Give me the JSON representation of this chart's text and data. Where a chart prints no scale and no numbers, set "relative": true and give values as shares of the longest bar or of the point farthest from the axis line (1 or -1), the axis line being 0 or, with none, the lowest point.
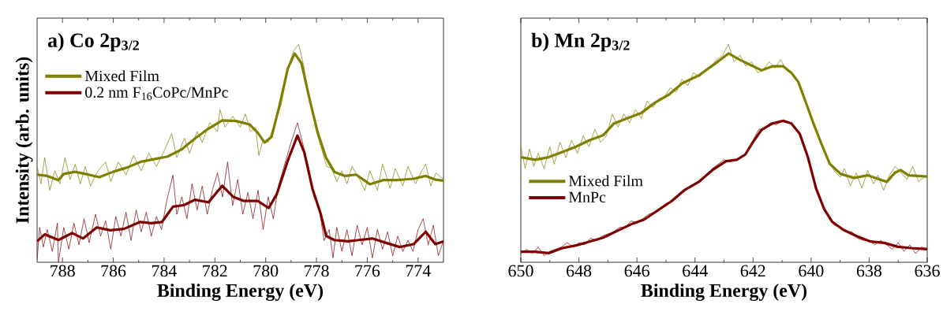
{
  "chart_data": [
    {
      "type": "line",
      "title": "a) Co 2p$_{3/2}$",
      "xlabel": "Binding Energy (eV)",
      "ylabel": "Intensity (arb. units)",
      "relative": true,
      "xlim": [
        789,
        773
      ],
      "xticks": [
        788,
        786,
        784,
        782,
        780,
        778,
        776,
        774
      ],
      "legend": "top left",
      "series": [
        {
          "color": "#808000",
          "x": [
            789.0,
            788.85,
            788.7,
            788.5,
            788.3,
            788.1,
            787.9,
            787.7,
            787.5,
            787.3,
            787.1,
            786.9,
            786.6,
            786.3,
            786.1,
            785.8,
            785.5,
            785.2,
            784.9,
            784.6,
            784.3,
            784.0,
            783.7,
            783.5,
            783.2,
            783.0,
            782.7,
            782.5,
            782.2,
            781.9,
            781.8,
            781.6,
            781.3,
            781.0,
            780.8,
            780.6,
            780.4,
            780.27,
            780.1,
            779.9,
            779.7,
            779.4,
            779.1,
            778.9,
            778.7,
            778.5,
            778.3,
            778.0,
            777.8,
            777.6,
            777.4,
            777.2,
            777.0,
            776.8,
            776.6,
            776.3,
            776.1,
            775.9,
            775.6,
            775.4,
            775.1,
            774.9,
            774.6,
            774.4,
            774.1,
            773.9,
            773.7,
            773.5,
            773.3,
            773.0
          ],
          "values": [
            0.44,
            0.36,
            0.48,
            0.33,
            0.42,
            0.36,
            0.48,
            0.38,
            0.45,
            0.36,
            0.44,
            0.35,
            0.42,
            0.46,
            0.37,
            0.46,
            0.4,
            0.49,
            0.42,
            0.5,
            0.44,
            0.51,
            0.59,
            0.48,
            0.57,
            0.5,
            0.6,
            0.55,
            0.64,
            0.6,
            0.7,
            0.62,
            0.67,
            0.62,
            0.68,
            0.6,
            0.62,
            0.49,
            0.56,
            0.55,
            0.62,
            0.72,
            0.9,
            0.97,
            1.0,
            0.9,
            0.76,
            0.6,
            0.52,
            0.44,
            0.43,
            0.37,
            0.42,
            0.36,
            0.44,
            0.38,
            0.33,
            0.42,
            0.33,
            0.45,
            0.34,
            0.43,
            0.35,
            0.44,
            0.36,
            0.41,
            0.45,
            0.35,
            0.41,
            0.38
          ]
        },
        {
          "color": "#800000",
          "x": [
            789.0,
            788.9,
            788.75,
            788.6,
            788.4,
            788.2,
            788.16,
            787.95,
            787.75,
            787.55,
            787.35,
            787.15,
            786.95,
            786.7,
            786.5,
            786.3,
            786.1,
            785.9,
            785.7,
            785.5,
            785.3,
            785.1,
            784.9,
            784.7,
            784.5,
            784.3,
            784.1,
            783.9,
            783.65,
            783.5,
            783.3,
            783.1,
            782.9,
            782.7,
            782.5,
            782.3,
            782.1,
            781.9,
            781.7,
            781.5,
            781.3,
            781.1,
            780.9,
            780.7,
            780.5,
            780.3,
            780.1,
            779.9,
            779.7,
            779.5,
            779.2,
            779.0,
            778.75,
            778.55,
            778.3,
            778.1,
            777.9,
            777.7,
            777.5,
            777.35,
            777.2,
            777.0,
            776.8,
            776.6,
            776.4,
            776.2,
            776.0,
            775.8,
            775.6,
            775.4,
            775.2,
            775.0,
            774.8,
            774.6,
            774.4,
            774.2,
            774.0,
            773.8,
            773.6,
            773.4,
            773.2,
            773.0
          ],
          "values": [
            0.01,
            0.16,
            0.07,
            0.15,
            0.05,
            0.18,
            0.0,
            0.16,
            0.06,
            0.18,
            0.08,
            0.2,
            0.09,
            0.22,
            0.12,
            0.19,
            0.06,
            0.21,
            0.12,
            0.23,
            0.1,
            0.24,
            0.14,
            0.23,
            0.12,
            0.21,
            0.15,
            0.28,
            0.4,
            0.22,
            0.3,
            0.2,
            0.36,
            0.24,
            0.35,
            0.22,
            0.33,
            0.41,
            0.3,
            0.46,
            0.26,
            0.38,
            0.22,
            0.32,
            0.2,
            0.33,
            0.15,
            0.3,
            0.2,
            0.35,
            0.47,
            0.55,
            0.64,
            0.55,
            0.43,
            0.3,
            0.25,
            0.1,
            0.15,
            0.02,
            0.16,
            0.05,
            0.15,
            0.03,
            0.17,
            0.08,
            0.16,
            0.02,
            0.15,
            0.06,
            0.14,
            0.03,
            0.12,
            0.05,
            0.1,
            0.05,
            0.15,
            0.2,
            0.08,
            0.17,
            0.03,
            0.1
          ]
        },
        {
          "name": "Mixed Film",
          "color": "#808000",
          "x": [
            789.0,
            788.59,
            788.16,
            787.95,
            787.52,
            787.09,
            786.55,
            786.01,
            785.47,
            784.94,
            784.4,
            783.86,
            783.32,
            782.78,
            782.25,
            781.71,
            781.17,
            780.63,
            780.31,
            780.04,
            779.77,
            779.45,
            779.13,
            778.86,
            778.59,
            778.27,
            777.95,
            777.62,
            777.3,
            776.87,
            776.44,
            775.9,
            775.37,
            774.83,
            774.18,
            773.7,
            773.32,
            773.0
          ],
          "values": [
            0.402,
            0.396,
            0.377,
            0.405,
            0.415,
            0.405,
            0.39,
            0.415,
            0.434,
            0.46,
            0.473,
            0.485,
            0.517,
            0.568,
            0.613,
            0.651,
            0.648,
            0.632,
            0.594,
            0.549,
            0.575,
            0.722,
            0.888,
            0.958,
            0.913,
            0.747,
            0.594,
            0.479,
            0.415,
            0.396,
            0.402,
            0.358,
            0.377,
            0.377,
            0.383,
            0.396,
            0.379,
            0.374
          ]
        },
        {
          "name": "0.2 nm F$_{16}$CoPc/MnPc",
          "color": "#800000",
          "x": [
            789.0,
            788.7,
            788.16,
            787.62,
            787.19,
            786.65,
            786.12,
            785.58,
            784.94,
            784.51,
            784.08,
            783.65,
            783.22,
            782.78,
            782.25,
            781.71,
            781.28,
            780.85,
            780.31,
            779.88,
            779.56,
            779.13,
            778.75,
            778.48,
            778.16,
            777.84,
            777.62,
            777.3,
            776.76,
            776.33,
            775.8,
            775.26,
            774.72,
            774.18,
            773.7,
            773.32,
            773.0
          ],
          "values": [
            0.096,
            0.128,
            0.102,
            0.134,
            0.109,
            0.16,
            0.147,
            0.153,
            0.185,
            0.179,
            0.185,
            0.255,
            0.262,
            0.287,
            0.275,
            0.351,
            0.3,
            0.281,
            0.281,
            0.249,
            0.313,
            0.466,
            0.581,
            0.504,
            0.338,
            0.224,
            0.121,
            0.102,
            0.096,
            0.102,
            0.109,
            0.089,
            0.07,
            0.083,
            0.14,
            0.083,
            0.096
          ]
        }
      ]
    },
    {
      "type": "line",
      "title": "b) Mn 2p$_{3/2}$",
      "xlabel": "Binding Energy (eV)",
      "relative": true,
      "xlim": [
        650,
        636
      ],
      "xticks": [
        650,
        648,
        646,
        644,
        642,
        640,
        638,
        636
      ],
      "legend": "left",
      "series": [
        {
          "color": "#808000",
          "x": [
            650.0,
            649.85,
            649.7,
            649.55,
            649.4,
            649.2,
            649.0,
            648.85,
            648.65,
            648.45,
            648.25,
            648.05,
            647.85,
            647.65,
            647.45,
            647.25,
            647.05,
            646.85,
            646.65,
            646.45,
            646.25,
            646.05,
            645.85,
            645.65,
            645.45,
            645.25,
            645.05,
            644.85,
            644.65,
            644.45,
            644.25,
            644.05,
            643.85,
            643.65,
            643.45,
            643.25,
            643.05,
            642.85,
            642.65,
            642.45,
            642.25,
            642.05,
            641.85,
            641.65,
            641.45,
            641.25,
            641.05,
            640.85,
            640.6,
            640.4,
            640.2,
            640.0,
            639.8,
            639.6,
            639.4,
            639.2,
            639.0,
            638.85,
            638.65,
            638.45,
            638.25,
            638.05,
            637.85,
            637.7,
            637.5,
            637.3,
            637.1,
            636.9,
            636.7,
            636.5,
            636.3,
            636.0
          ],
          "values": [
            0.53,
            0.43,
            0.52,
            0.44,
            0.5,
            0.43,
            0.53,
            0.45,
            0.55,
            0.48,
            0.56,
            0.5,
            0.58,
            0.53,
            0.61,
            0.55,
            0.58,
            0.68,
            0.62,
            0.68,
            0.64,
            0.7,
            0.66,
            0.74,
            0.71,
            0.75,
            0.76,
            0.8,
            0.78,
            0.84,
            0.81,
            0.87,
            0.85,
            0.88,
            0.9,
            0.93,
            0.95,
            1.0,
            0.92,
            0.95,
            0.9,
            0.92,
            0.87,
            0.88,
            0.92,
            0.89,
            0.93,
            0.88,
            0.86,
            0.82,
            0.74,
            0.66,
            0.59,
            0.53,
            0.46,
            0.42,
            0.39,
            0.43,
            0.35,
            0.41,
            0.34,
            0.42,
            0.36,
            0.4,
            0.33,
            0.4,
            0.44,
            0.41,
            0.38,
            0.44,
            0.37,
            0.4
          ]
        },
        {
          "color": "#800000",
          "x": [
            650.0,
            649.8,
            649.6,
            649.4,
            649.2,
            649.0,
            648.8,
            648.6,
            648.4,
            648.2,
            648.0,
            647.8,
            647.6,
            647.4,
            647.2,
            647.0,
            646.8,
            646.6,
            646.4,
            646.2,
            646.0,
            645.8,
            645.6,
            645.4,
            645.2,
            645.0,
            644.8,
            644.6,
            644.4,
            644.2,
            644.0,
            643.8,
            643.6,
            643.4,
            643.2,
            643.0,
            642.8,
            642.6,
            642.4,
            642.2,
            642.0,
            641.8,
            641.6,
            641.4,
            641.2,
            641.0,
            640.8,
            640.6,
            640.4,
            640.2,
            640.0,
            639.8,
            639.6,
            639.4,
            639.2,
            639.0,
            638.8,
            638.6,
            638.4,
            638.2,
            638.0,
            637.8,
            637.6,
            637.4,
            637.2,
            637.0,
            636.8,
            636.6,
            636.4,
            636.2,
            636.0
          ],
          "values": [
            0.04,
            0.06,
            0.04,
            0.07,
            0.03,
            0.05,
            0.06,
            0.07,
            0.09,
            0.07,
            0.09,
            0.08,
            0.11,
            0.1,
            0.12,
            0.13,
            0.14,
            0.16,
            0.16,
            0.19,
            0.18,
            0.2,
            0.22,
            0.23,
            0.25,
            0.27,
            0.28,
            0.31,
            0.33,
            0.34,
            0.36,
            0.37,
            0.4,
            0.43,
            0.45,
            0.47,
            0.46,
            0.47,
            0.48,
            0.51,
            0.56,
            0.61,
            0.61,
            0.64,
            0.63,
            0.65,
            0.64,
            0.63,
            0.59,
            0.52,
            0.42,
            0.33,
            0.26,
            0.21,
            0.17,
            0.16,
            0.14,
            0.14,
            0.11,
            0.1,
            0.1,
            0.08,
            0.1,
            0.08,
            0.06,
            0.09,
            0.05,
            0.08,
            0.04,
            0.07,
            0.06
          ]
        },
        {
          "name": "Mixed Film",
          "color": "#808000",
          "x": [
            650.0,
            649.51,
            649.04,
            648.57,
            648.1,
            647.63,
            647.16,
            646.79,
            646.32,
            645.85,
            645.38,
            644.91,
            644.44,
            643.87,
            643.31,
            642.84,
            642.46,
            642.09,
            641.71,
            641.33,
            640.96,
            640.68,
            640.44,
            640.21,
            639.92,
            639.64,
            639.36,
            638.98,
            638.52,
            638.05,
            637.67,
            637.39,
            637.11,
            636.92,
            636.64,
            636.0
          ],
          "values": [
            0.482,
            0.47,
            0.482,
            0.506,
            0.53,
            0.56,
            0.583,
            0.637,
            0.661,
            0.685,
            0.732,
            0.768,
            0.821,
            0.857,
            0.911,
            0.958,
            0.929,
            0.905,
            0.881,
            0.899,
            0.899,
            0.869,
            0.827,
            0.744,
            0.637,
            0.542,
            0.452,
            0.405,
            0.387,
            0.399,
            0.381,
            0.369,
            0.411,
            0.423,
            0.399,
            0.393
          ]
        },
        {
          "name": "MnPc",
          "color": "#800000",
          "x": [
            650.0,
            649.51,
            649.04,
            648.57,
            648.1,
            647.63,
            647.16,
            646.69,
            646.22,
            645.75,
            645.28,
            644.81,
            644.34,
            643.87,
            643.4,
            642.93,
            642.56,
            642.27,
            641.99,
            641.71,
            641.33,
            640.96,
            640.68,
            640.39,
            640.11,
            639.83,
            639.55,
            639.27,
            638.89,
            638.42,
            637.95,
            637.48,
            637.01,
            636.54,
            636.0
          ],
          "values": [
            0.048,
            0.048,
            0.042,
            0.065,
            0.077,
            0.095,
            0.113,
            0.143,
            0.173,
            0.196,
            0.238,
            0.28,
            0.333,
            0.369,
            0.423,
            0.464,
            0.47,
            0.494,
            0.554,
            0.607,
            0.637,
            0.649,
            0.637,
            0.589,
            0.482,
            0.339,
            0.244,
            0.185,
            0.149,
            0.119,
            0.095,
            0.089,
            0.071,
            0.065,
            0.06
          ]
        }
      ]
    }
  ]
}
